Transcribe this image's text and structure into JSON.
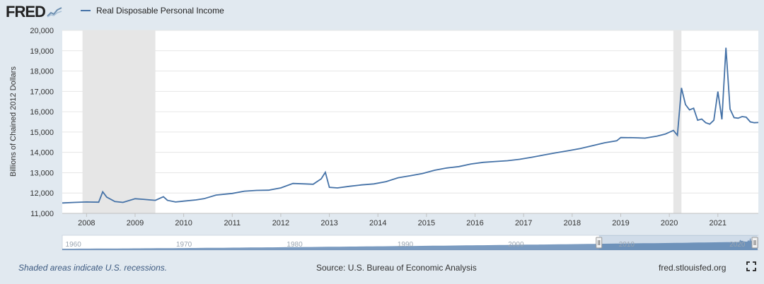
{
  "brand": {
    "logo_text": "FRED",
    "logo_icon": "fred-chart-icon"
  },
  "colors": {
    "series": "#4572a7",
    "recession": "#e6e6e6",
    "background": "#e1e9f0",
    "plot": "#ffffff",
    "navigator": "#4572a7"
  },
  "footer": {
    "note": "Shaded areas indicate U.S. recessions.",
    "source": "Source: U.S. Bureau of Economic Analysis",
    "site": "fred.stlouisfed.org",
    "expand_icon": "fullscreen-icon"
  },
  "chart_data": {
    "type": "line",
    "title": "",
    "xlabel": "",
    "ylabel": "Billions of Chained 2012 Dollars",
    "ylim": [
      11000,
      20000
    ],
    "xlim": [
      "2007-07",
      "2021-11"
    ],
    "yticks": [
      "11,000",
      "12,000",
      "13,000",
      "14,000",
      "15,000",
      "16,000",
      "17,000",
      "18,000",
      "19,000",
      "20,000"
    ],
    "xticks": [
      "2008",
      "2009",
      "2010",
      "2011",
      "2012",
      "2013",
      "2014",
      "2015",
      "2016",
      "2017",
      "2018",
      "2019",
      "2020",
      "2021"
    ],
    "legend": {
      "placement": "top-left",
      "entries": [
        "Real Disposable Personal Income"
      ]
    },
    "grid": "horizontal",
    "recessions": [
      {
        "start": "2007-12",
        "end": "2009-06"
      },
      {
        "start": "2020-02",
        "end": "2020-04"
      }
    ],
    "series": [
      {
        "name": "Real Disposable Personal Income",
        "points": [
          [
            "2007-07",
            11510
          ],
          [
            "2007-10",
            11540
          ],
          [
            "2008-01",
            11560
          ],
          [
            "2008-04",
            11550
          ],
          [
            "2008-05",
            12060
          ],
          [
            "2008-06",
            11800
          ],
          [
            "2008-08",
            11580
          ],
          [
            "2008-10",
            11540
          ],
          [
            "2009-01",
            11720
          ],
          [
            "2009-03",
            11690
          ],
          [
            "2009-06",
            11640
          ],
          [
            "2009-08",
            11820
          ],
          [
            "2009-09",
            11640
          ],
          [
            "2009-11",
            11560
          ],
          [
            "2010-01",
            11600
          ],
          [
            "2010-04",
            11660
          ],
          [
            "2010-06",
            11720
          ],
          [
            "2010-09",
            11900
          ],
          [
            "2011-01",
            11980
          ],
          [
            "2011-04",
            12090
          ],
          [
            "2011-07",
            12130
          ],
          [
            "2011-10",
            12140
          ],
          [
            "2012-01",
            12250
          ],
          [
            "2012-04",
            12470
          ],
          [
            "2012-07",
            12450
          ],
          [
            "2012-09",
            12430
          ],
          [
            "2012-11",
            12700
          ],
          [
            "2012-12",
            13020
          ],
          [
            "2013-01",
            12280
          ],
          [
            "2013-03",
            12250
          ],
          [
            "2013-06",
            12330
          ],
          [
            "2013-09",
            12400
          ],
          [
            "2013-12",
            12450
          ],
          [
            "2014-03",
            12560
          ],
          [
            "2014-06",
            12750
          ],
          [
            "2014-09",
            12850
          ],
          [
            "2014-12",
            12960
          ],
          [
            "2015-03",
            13120
          ],
          [
            "2015-06",
            13230
          ],
          [
            "2015-09",
            13300
          ],
          [
            "2015-12",
            13430
          ],
          [
            "2016-03",
            13510
          ],
          [
            "2016-06",
            13550
          ],
          [
            "2016-09",
            13590
          ],
          [
            "2016-12",
            13660
          ],
          [
            "2017-03",
            13760
          ],
          [
            "2017-06",
            13870
          ],
          [
            "2017-09",
            13980
          ],
          [
            "2017-12",
            14080
          ],
          [
            "2018-03",
            14190
          ],
          [
            "2018-06",
            14330
          ],
          [
            "2018-09",
            14470
          ],
          [
            "2018-12",
            14570
          ],
          [
            "2019-01",
            14730
          ],
          [
            "2019-04",
            14720
          ],
          [
            "2019-07",
            14700
          ],
          [
            "2019-10",
            14800
          ],
          [
            "2019-12",
            14900
          ],
          [
            "2020-02",
            15080
          ],
          [
            "2020-03",
            14840
          ],
          [
            "2020-04",
            17170
          ],
          [
            "2020-05",
            16350
          ],
          [
            "2020-06",
            16090
          ],
          [
            "2020-07",
            16170
          ],
          [
            "2020-08",
            15580
          ],
          [
            "2020-09",
            15640
          ],
          [
            "2020-10",
            15460
          ],
          [
            "2020-11",
            15390
          ],
          [
            "2020-12",
            15580
          ],
          [
            "2021-01",
            16990
          ],
          [
            "2021-02",
            15620
          ],
          [
            "2021-03",
            19150
          ],
          [
            "2021-04",
            16130
          ],
          [
            "2021-05",
            15710
          ],
          [
            "2021-06",
            15680
          ],
          [
            "2021-07",
            15760
          ],
          [
            "2021-08",
            15730
          ],
          [
            "2021-09",
            15500
          ],
          [
            "2021-10",
            15460
          ],
          [
            "2021-11",
            15470
          ]
        ]
      }
    ],
    "navigator": {
      "labels": [
        "1960",
        "1970",
        "1980",
        "1990",
        "2000",
        "2010",
        "2020"
      ],
      "range_start": 1959,
      "range_end": 2021.9,
      "selected_start": "2007-07",
      "selected_end": "2021-11"
    }
  }
}
